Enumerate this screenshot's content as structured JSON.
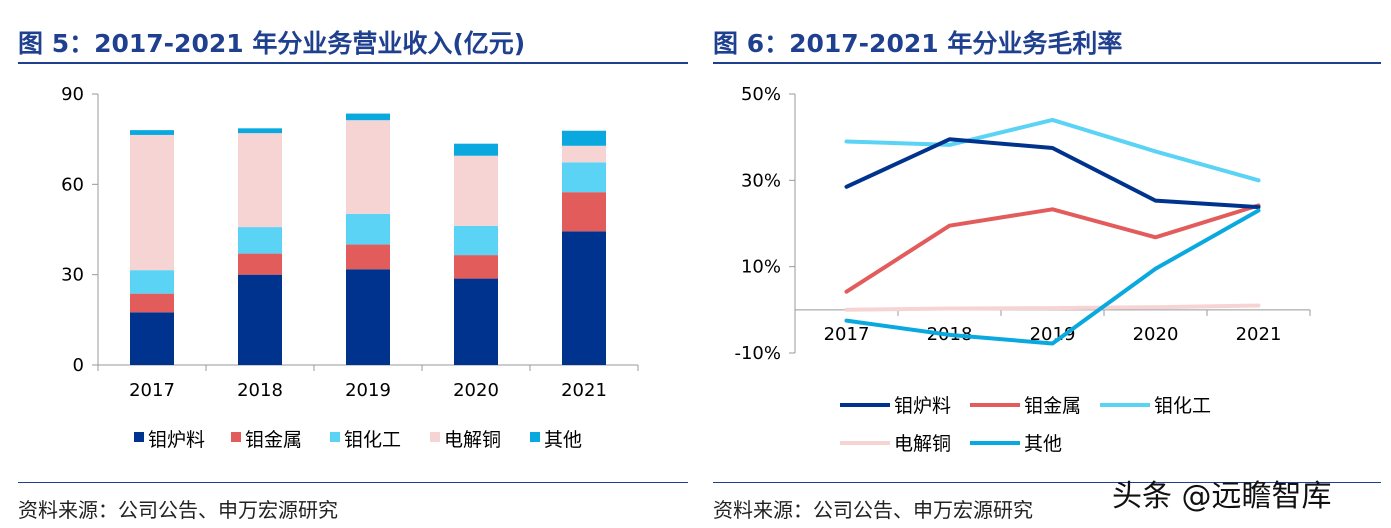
{
  "left": {
    "title": "图 5：2017-2021 年分业务营业收入(亿元)",
    "source": "资料来源：公司公告、申万宏源研究"
  },
  "right": {
    "title": "图 6：2017-2021 年分业务毛利率",
    "source": "资料来源：公司公告、申万宏源研究"
  },
  "watermark": "头条 @远瞻智库",
  "colors": {
    "title": "#1f3f8f",
    "钼炉料": "#00338d",
    "钼金属": "#e25c5c",
    "钼化工": "#5ad3f5",
    "电解铜": "#f7d4d4",
    "其他": "#09a9e0"
  },
  "chart_data": [
    {
      "type": "bar",
      "stacked": true,
      "title": "图 5：2017-2021 年分业务营业收入(亿元)",
      "categories": [
        "2017",
        "2018",
        "2019",
        "2020",
        "2021"
      ],
      "series": [
        {
          "name": "钼炉料",
          "values": [
            17.5,
            30.0,
            31.8,
            28.7,
            44.4
          ]
        },
        {
          "name": "钼金属",
          "values": [
            6.2,
            7.0,
            8.2,
            7.8,
            13.0
          ]
        },
        {
          "name": "钼化工",
          "values": [
            7.8,
            8.8,
            10.2,
            9.7,
            9.9
          ]
        },
        {
          "name": "电解铜",
          "values": [
            44.9,
            31.2,
            31.1,
            23.3,
            5.5
          ]
        },
        {
          "name": "其他",
          "values": [
            1.6,
            1.6,
            2.2,
            4.0,
            5.0
          ]
        }
      ],
      "ylim": [
        0,
        90
      ],
      "yticks": [
        "0",
        "30",
        "60",
        "90"
      ],
      "legend": "bottom"
    },
    {
      "type": "line",
      "title": "图 6：2017-2021 年分业务毛利率",
      "categories": [
        "2017",
        "2018",
        "2019",
        "2020",
        "2021"
      ],
      "series": [
        {
          "name": "钼炉料",
          "values": [
            28.5,
            39.5,
            37.5,
            25.3,
            23.8
          ]
        },
        {
          "name": "钼金属",
          "values": [
            4.2,
            19.5,
            23.3,
            16.8,
            24.2
          ]
        },
        {
          "name": "钼化工",
          "values": [
            39.0,
            38.2,
            44.0,
            36.7,
            30.0
          ]
        },
        {
          "name": "电解铜",
          "values": [
            0.0,
            0.3,
            0.4,
            0.6,
            1.0
          ]
        },
        {
          "name": "其他",
          "values": [
            -2.5,
            -5.8,
            -7.8,
            9.5,
            23.0
          ]
        }
      ],
      "ylim": [
        -10,
        50
      ],
      "yticks": [
        "50%",
        "30%",
        "10%",
        "-10%"
      ],
      "legend": "bottom"
    }
  ]
}
